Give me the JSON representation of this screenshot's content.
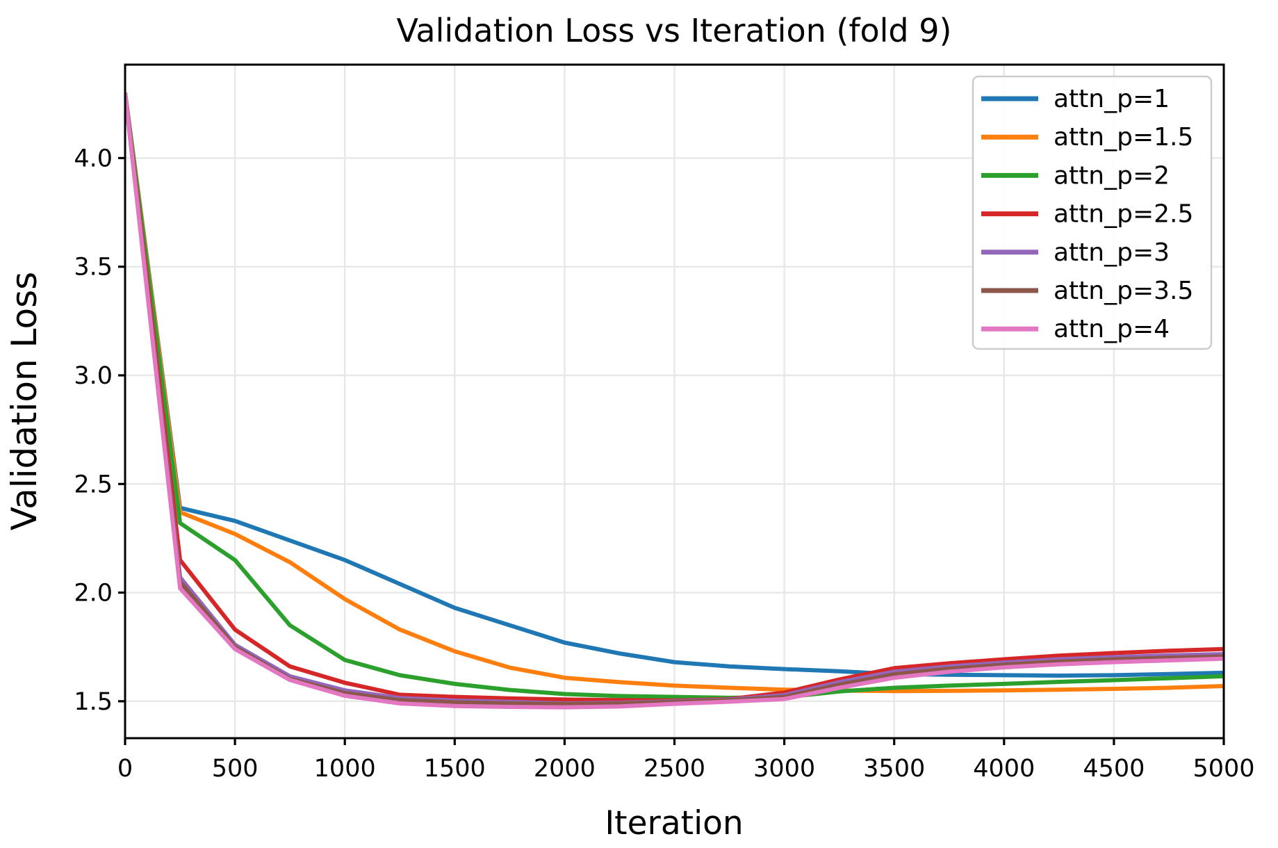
{
  "figure": {
    "title": "Validation Loss vs Iteration (fold 9)",
    "xlabel": "Iteration",
    "ylabel": "Validation Loss"
  },
  "colors": {
    "background": "#ffffff",
    "axes": "#000000",
    "grid": "#e7e7e7",
    "tick_text": "#000000",
    "legend_border": "#cccccc",
    "legend_fill": "#ffffff"
  },
  "chart_data": {
    "type": "line",
    "title": "Validation Loss vs Iteration (fold 9)",
    "xlabel": "Iteration",
    "ylabel": "Validation Loss",
    "xlim": [
      0,
      5000
    ],
    "ylim": [
      1.33,
      4.43
    ],
    "grid": true,
    "legend_position": "upper right",
    "xticks": {
      "values": [
        0,
        500,
        1000,
        1500,
        2000,
        2500,
        3000,
        3500,
        4000,
        4500,
        5000
      ],
      "labels": [
        "0",
        "500",
        "1000",
        "1500",
        "2000",
        "2500",
        "3000",
        "3500",
        "4000",
        "4500",
        "5000"
      ]
    },
    "yticks": {
      "values": [
        1.5,
        2.0,
        2.5,
        3.0,
        3.5,
        4.0
      ],
      "labels": [
        "1.5",
        "2.0",
        "2.5",
        "3.0",
        "3.5",
        "4.0"
      ]
    },
    "x": [
      0,
      250,
      500,
      750,
      1000,
      1250,
      1500,
      1750,
      2000,
      2250,
      2500,
      2750,
      3000,
      3250,
      3500,
      3750,
      4000,
      4250,
      4500,
      4750,
      5000
    ],
    "series": [
      {
        "name": "attn_p=1",
        "color": "#1f77b4",
        "values": [
          4.3,
          2.39,
          2.33,
          2.24,
          2.15,
          2.04,
          1.93,
          1.85,
          1.77,
          1.72,
          1.68,
          1.66,
          1.648,
          1.638,
          1.625,
          1.622,
          1.62,
          1.618,
          1.62,
          1.625,
          1.631
        ]
      },
      {
        "name": "attn_p=1.5",
        "color": "#ff7f0e",
        "values": [
          4.3,
          2.37,
          2.27,
          2.14,
          1.97,
          1.83,
          1.73,
          1.655,
          1.608,
          1.588,
          1.572,
          1.562,
          1.553,
          1.549,
          1.547,
          1.548,
          1.55,
          1.553,
          1.557,
          1.562,
          1.57
        ]
      },
      {
        "name": "attn_p=2",
        "color": "#2ca02c",
        "values": [
          4.3,
          2.32,
          2.15,
          1.85,
          1.69,
          1.62,
          1.58,
          1.552,
          1.533,
          1.524,
          1.52,
          1.516,
          1.518,
          1.545,
          1.562,
          1.572,
          1.58,
          1.589,
          1.597,
          1.606,
          1.615
        ]
      },
      {
        "name": "attn_p=2.5",
        "color": "#d62728",
        "values": [
          4.3,
          2.15,
          1.83,
          1.66,
          1.585,
          1.53,
          1.52,
          1.513,
          1.508,
          1.505,
          1.503,
          1.51,
          1.54,
          1.6,
          1.652,
          1.675,
          1.693,
          1.71,
          1.722,
          1.732,
          1.74
        ]
      },
      {
        "name": "attn_p=3",
        "color": "#9467bd",
        "values": [
          4.3,
          2.07,
          1.76,
          1.615,
          1.55,
          1.515,
          1.503,
          1.497,
          1.49,
          1.493,
          1.5,
          1.508,
          1.528,
          1.588,
          1.636,
          1.66,
          1.678,
          1.693,
          1.703,
          1.711,
          1.717
        ]
      },
      {
        "name": "attn_p=3.5",
        "color": "#8c564b",
        "values": [
          4.3,
          2.05,
          1.75,
          1.603,
          1.538,
          1.505,
          1.495,
          1.49,
          1.487,
          1.49,
          1.497,
          1.505,
          1.52,
          1.576,
          1.624,
          1.65,
          1.668,
          1.683,
          1.693,
          1.7,
          1.706
        ]
      },
      {
        "name": "attn_p=4",
        "color": "#e377c2",
        "values": [
          4.3,
          2.02,
          1.74,
          1.598,
          1.525,
          1.49,
          1.478,
          1.474,
          1.472,
          1.476,
          1.488,
          1.498,
          1.51,
          1.562,
          1.608,
          1.636,
          1.656,
          1.67,
          1.68,
          1.688,
          1.696
        ]
      }
    ]
  }
}
